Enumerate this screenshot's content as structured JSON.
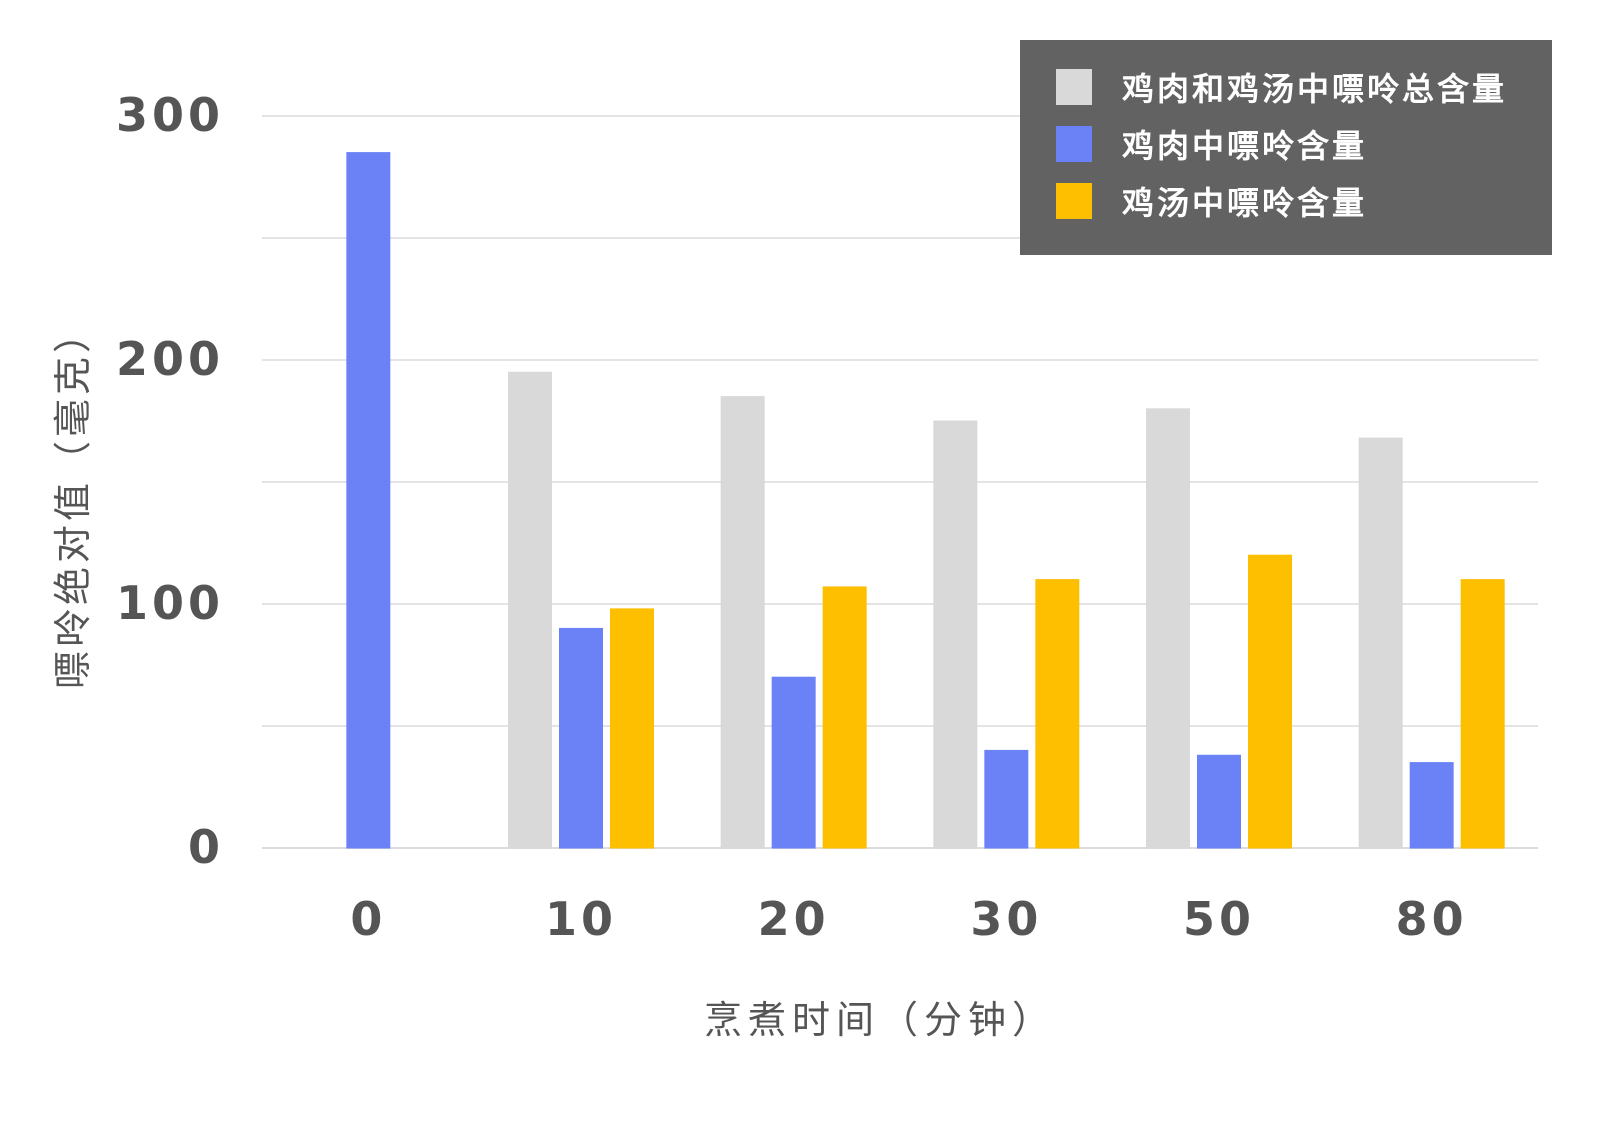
{
  "chart_data": {
    "type": "bar",
    "title": "",
    "xlabel": "烹煮时间（分钟）",
    "ylabel": "嘌呤绝对值（毫克）",
    "categories": [
      "0",
      "10",
      "20",
      "30",
      "50",
      "80"
    ],
    "ylim": [
      0,
      300
    ],
    "yticks": [
      "0",
      "100",
      "200",
      "300"
    ],
    "grid": true,
    "legend_position": "top-right",
    "series": [
      {
        "name": "鸡肉和鸡汤中嘌呤总含量",
        "color": "#d9d9d9",
        "values": [
          null,
          195,
          185,
          175,
          180,
          168
        ]
      },
      {
        "name": "鸡肉中嘌呤含量",
        "color": "#6a82f6",
        "values": [
          285,
          90,
          70,
          40,
          38,
          35
        ]
      },
      {
        "name": "鸡汤中嘌呤含量",
        "color": "#fdbf00",
        "values": [
          null,
          98,
          107,
          110,
          120,
          110
        ]
      }
    ]
  }
}
